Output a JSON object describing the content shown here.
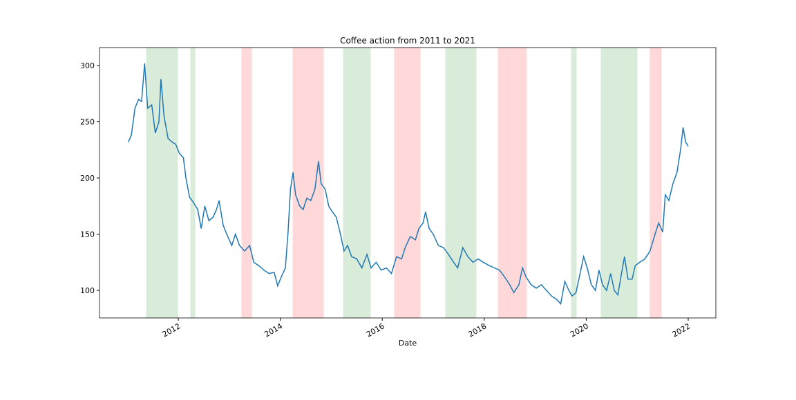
{
  "chart_data": {
    "type": "line",
    "title": "Coffee action from 2011 to 2021",
    "xlabel": "Date",
    "x": [
      2011.02,
      2011.08,
      2011.15,
      2011.22,
      2011.28,
      2011.34,
      2011.4,
      2011.48,
      2011.55,
      2011.62,
      2011.66,
      2011.72,
      2011.8,
      2011.88,
      2011.95,
      2012.02,
      2012.1,
      2012.15,
      2012.22,
      2012.3,
      2012.38,
      2012.45,
      2012.52,
      2012.6,
      2012.68,
      2012.75,
      2012.8,
      2012.88,
      2012.95,
      2013.05,
      2013.12,
      2013.2,
      2013.3,
      2013.4,
      2013.48,
      2013.58,
      2013.68,
      2013.78,
      2013.88,
      2013.95,
      2014.02,
      2014.1,
      2014.15,
      2014.2,
      2014.25,
      2014.3,
      2014.38,
      2014.45,
      2014.52,
      2014.6,
      2014.68,
      2014.75,
      2014.8,
      2014.88,
      2014.95,
      2015.02,
      2015.1,
      2015.18,
      2015.25,
      2015.32,
      2015.4,
      2015.5,
      2015.6,
      2015.7,
      2015.78,
      2015.88,
      2015.98,
      2016.08,
      2016.18,
      2016.28,
      2016.38,
      2016.45,
      2016.55,
      2016.65,
      2016.72,
      2016.8,
      2016.85,
      2016.92,
      2017.0,
      2017.1,
      2017.2,
      2017.3,
      2017.4,
      2017.48,
      2017.58,
      2017.68,
      2017.78,
      2017.88,
      2017.98,
      2018.1,
      2018.2,
      2018.3,
      2018.4,
      2018.5,
      2018.58,
      2018.68,
      2018.75,
      2018.82,
      2018.92,
      2019.02,
      2019.12,
      2019.22,
      2019.32,
      2019.42,
      2019.5,
      2019.58,
      2019.66,
      2019.72,
      2019.8,
      2019.88,
      2019.95,
      2020.02,
      2020.1,
      2020.18,
      2020.25,
      2020.32,
      2020.4,
      2020.48,
      2020.55,
      2020.62,
      2020.68,
      2020.75,
      2020.82,
      2020.9,
      2020.96,
      2021.05,
      2021.15,
      2021.25,
      2021.35,
      2021.42,
      2021.5,
      2021.55,
      2021.62,
      2021.7,
      2021.78,
      2021.85,
      2021.9,
      2021.95,
      2022.0
    ],
    "series": [
      {
        "name": "Coffee",
        "color": "#1f77b4",
        "values": [
          232,
          238,
          262,
          270,
          268,
          302,
          262,
          265,
          240,
          250,
          288,
          255,
          235,
          232,
          230,
          222,
          218,
          200,
          183,
          178,
          172,
          155,
          175,
          162,
          165,
          172,
          180,
          158,
          150,
          140,
          150,
          140,
          135,
          140,
          125,
          122,
          118,
          115,
          116,
          104,
          112,
          120,
          150,
          190,
          205,
          185,
          175,
          172,
          182,
          180,
          190,
          215,
          195,
          190,
          175,
          170,
          165,
          150,
          135,
          140,
          130,
          128,
          120,
          132,
          120,
          125,
          118,
          120,
          115,
          130,
          128,
          138,
          148,
          145,
          155,
          160,
          170,
          155,
          150,
          140,
          138,
          132,
          125,
          120,
          138,
          130,
          125,
          128,
          125,
          122,
          120,
          118,
          112,
          105,
          98,
          105,
          120,
          112,
          105,
          102,
          105,
          100,
          95,
          92,
          88,
          108,
          100,
          95,
          98,
          115,
          130,
          120,
          105,
          100,
          118,
          105,
          100,
          115,
          100,
          96,
          112,
          130,
          110,
          110,
          122,
          125,
          128,
          135,
          150,
          160,
          152,
          185,
          180,
          195,
          205,
          225,
          245,
          232,
          228
        ]
      }
    ],
    "spans": [
      {
        "start": 2011.377,
        "end": 2011.986,
        "color": "#d9ecd9"
      },
      {
        "start": 2012.244,
        "end": 2012.325,
        "color": "#d9ecd9"
      },
      {
        "start": 2013.247,
        "end": 2013.436,
        "color": "#ffd9d9"
      },
      {
        "start": 2014.249,
        "end": 2014.846,
        "color": "#ffd9d9"
      },
      {
        "start": 2015.238,
        "end": 2015.767,
        "color": "#d9ecd9"
      },
      {
        "start": 2016.241,
        "end": 2016.743,
        "color": "#ffd9d9"
      },
      {
        "start": 2017.244,
        "end": 2017.84,
        "color": "#d9ecd9"
      },
      {
        "start": 2018.274,
        "end": 2018.829,
        "color": "#ffd9d9"
      },
      {
        "start": 2019.71,
        "end": 2019.805,
        "color": "#d9ecd9"
      },
      {
        "start": 2020.293,
        "end": 2020.997,
        "color": "#d9ecd9"
      },
      {
        "start": 2021.255,
        "end": 2021.472,
        "color": "#ffd9d9"
      }
    ],
    "xlim": [
      2010.455,
      2022.542
    ],
    "xticks": [
      2012,
      2014,
      2016,
      2018,
      2020,
      2022
    ],
    "ylim": [
      75.5,
      316
    ],
    "yticks": [
      100,
      150,
      200,
      250,
      300
    ]
  }
}
